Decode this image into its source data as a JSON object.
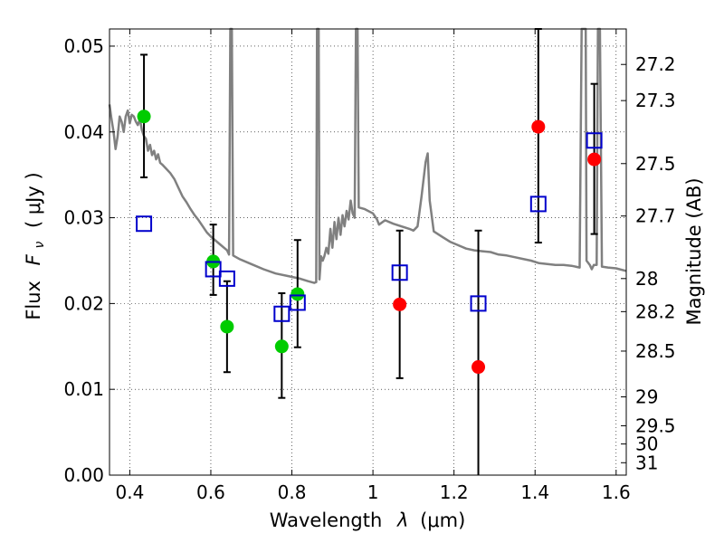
{
  "chart_data": {
    "type": "scatter",
    "xlabel": "Wavelength  λ (μm)",
    "ylabel": "Flux  F_ν  ( μJy )",
    "ylabel_parts": {
      "prefix": "Flux",
      "symbol": "F",
      "subscript": "ν",
      "unit": "( μJy )"
    },
    "xlabel_parts": {
      "prefix": "Wavelength",
      "symbol": "λ",
      "unit": "(μm)"
    },
    "y2label": "Magnitude (AB)",
    "xlim": [
      0.35,
      1.625
    ],
    "ylim": [
      0.0,
      0.052
    ],
    "grid": true,
    "x_ticks": [
      "0.4",
      "0.6",
      "0.8",
      "1",
      "1.2",
      "1.4",
      "1.6"
    ],
    "x_tick_values": [
      0.4,
      0.6,
      0.8,
      1.0,
      1.2,
      1.4,
      1.6
    ],
    "y_ticks": [
      "0.00",
      "0.01",
      "0.02",
      "0.03",
      "0.04",
      "0.05"
    ],
    "y_tick_values": [
      0.0,
      0.01,
      0.02,
      0.03,
      0.04,
      0.05
    ],
    "y2_ticks": [
      "27.2",
      "27.3",
      "27.5",
      "27.7",
      "28",
      "28.2",
      "28.5",
      "29",
      "29.5",
      "30",
      "31"
    ],
    "y2_tick_values": [
      27.2,
      27.3,
      27.5,
      27.7,
      28.0,
      28.2,
      28.5,
      29.0,
      29.5,
      30.0,
      31.0
    ],
    "colors": {
      "green": "#00cc00",
      "red": "#ff0000",
      "model_box": "#0000cc",
      "sed": "#808080",
      "errorbar": "#000000"
    },
    "series": [
      {
        "marker": "circle",
        "color": "#00cc00",
        "points": [
          {
            "x": 0.435,
            "y": 0.0418,
            "yerr_low": 0.0347,
            "yerr_high": 0.049
          },
          {
            "x": 0.606,
            "y": 0.0249,
            "yerr_low": 0.021,
            "yerr_high": 0.0292
          },
          {
            "x": 0.64,
            "y": 0.0173,
            "yerr_low": 0.012,
            "yerr_high": 0.0226
          },
          {
            "x": 0.775,
            "y": 0.015,
            "yerr_low": 0.009,
            "yerr_high": 0.0212
          },
          {
            "x": 0.814,
            "y": 0.0211,
            "yerr_low": 0.0149,
            "yerr_high": 0.0274
          }
        ]
      },
      {
        "marker": "circle",
        "color": "#ff0000",
        "points": [
          {
            "x": 1.066,
            "y": 0.0199,
            "yerr_low": 0.0113,
            "yerr_high": 0.0285
          },
          {
            "x": 1.26,
            "y": 0.0126,
            "yerr_low": 0.0,
            "yerr_high": 0.0285
          },
          {
            "x": 1.408,
            "y": 0.0406,
            "yerr_low": 0.0271,
            "yerr_high": 0.052
          },
          {
            "x": 1.546,
            "y": 0.0368,
            "yerr_low": 0.0281,
            "yerr_high": 0.0456
          }
        ]
      },
      {
        "marker": "square-open",
        "color": "#0000cc",
        "points": [
          {
            "x": 0.435,
            "y": 0.0293
          },
          {
            "x": 0.606,
            "y": 0.024
          },
          {
            "x": 0.64,
            "y": 0.0229
          },
          {
            "x": 0.775,
            "y": 0.0188
          },
          {
            "x": 0.814,
            "y": 0.0201
          },
          {
            "x": 1.066,
            "y": 0.0236
          },
          {
            "x": 1.26,
            "y": 0.02
          },
          {
            "x": 1.408,
            "y": 0.0316
          },
          {
            "x": 1.546,
            "y": 0.039
          }
        ]
      }
    ],
    "sed_curve": {
      "color": "#808080",
      "points": [
        [
          0.35,
          0.0432
        ],
        [
          0.355,
          0.0415
        ],
        [
          0.36,
          0.04
        ],
        [
          0.365,
          0.038
        ],
        [
          0.37,
          0.0395
        ],
        [
          0.375,
          0.0418
        ],
        [
          0.38,
          0.0412
        ],
        [
          0.385,
          0.04
        ],
        [
          0.39,
          0.0418
        ],
        [
          0.395,
          0.0425
        ],
        [
          0.4,
          0.041
        ],
        [
          0.405,
          0.042
        ],
        [
          0.41,
          0.0418
        ],
        [
          0.415,
          0.0412
        ],
        [
          0.42,
          0.0408
        ],
        [
          0.425,
          0.0415
        ],
        [
          0.43,
          0.0402
        ],
        [
          0.435,
          0.0395
        ],
        [
          0.44,
          0.0392
        ],
        [
          0.445,
          0.0378
        ],
        [
          0.45,
          0.0385
        ],
        [
          0.455,
          0.0373
        ],
        [
          0.46,
          0.0378
        ],
        [
          0.465,
          0.0368
        ],
        [
          0.47,
          0.0374
        ],
        [
          0.475,
          0.0364
        ],
        [
          0.48,
          0.0362
        ],
        [
          0.49,
          0.0357
        ],
        [
          0.5,
          0.0352
        ],
        [
          0.51,
          0.0345
        ],
        [
          0.52,
          0.0335
        ],
        [
          0.53,
          0.0325
        ],
        [
          0.54,
          0.0318
        ],
        [
          0.55,
          0.031
        ],
        [
          0.56,
          0.0303
        ],
        [
          0.57,
          0.0297
        ],
        [
          0.58,
          0.029
        ],
        [
          0.59,
          0.0283
        ],
        [
          0.6,
          0.0278
        ],
        [
          0.62,
          0.027
        ],
        [
          0.64,
          0.0262
        ],
        [
          0.645,
          0.0257
        ],
        [
          0.648,
          0.052
        ],
        [
          0.652,
          0.052
        ],
        [
          0.655,
          0.0256
        ],
        [
          0.67,
          0.0252
        ],
        [
          0.7,
          0.0246
        ],
        [
          0.73,
          0.024
        ],
        [
          0.76,
          0.0235
        ],
        [
          0.79,
          0.0232
        ],
        [
          0.82,
          0.0229
        ],
        [
          0.84,
          0.0226
        ],
        [
          0.855,
          0.0224
        ],
        [
          0.86,
          0.0225
        ],
        [
          0.862,
          0.052
        ],
        [
          0.866,
          0.052
        ],
        [
          0.868,
          0.0228
        ],
        [
          0.872,
          0.0255
        ],
        [
          0.876,
          0.025
        ],
        [
          0.88,
          0.0255
        ],
        [
          0.885,
          0.0265
        ],
        [
          0.89,
          0.0258
        ],
        [
          0.895,
          0.0287
        ],
        [
          0.9,
          0.0265
        ],
        [
          0.905,
          0.0295
        ],
        [
          0.91,
          0.0275
        ],
        [
          0.915,
          0.03
        ],
        [
          0.92,
          0.028
        ],
        [
          0.925,
          0.0303
        ],
        [
          0.93,
          0.029
        ],
        [
          0.935,
          0.0308
        ],
        [
          0.94,
          0.0298
        ],
        [
          0.945,
          0.032
        ],
        [
          0.95,
          0.0305
        ],
        [
          0.955,
          0.03
        ],
        [
          0.958,
          0.052
        ],
        [
          0.962,
          0.052
        ],
        [
          0.965,
          0.0312
        ],
        [
          0.98,
          0.031
        ],
        [
          1.0,
          0.0305
        ],
        [
          1.01,
          0.0298
        ],
        [
          1.015,
          0.0292
        ],
        [
          1.03,
          0.0297
        ],
        [
          1.05,
          0.0293
        ],
        [
          1.07,
          0.029
        ],
        [
          1.09,
          0.0287
        ],
        [
          1.1,
          0.0285
        ],
        [
          1.11,
          0.029
        ],
        [
          1.12,
          0.0325
        ],
        [
          1.13,
          0.0365
        ],
        [
          1.135,
          0.0375
        ],
        [
          1.14,
          0.032
        ],
        [
          1.15,
          0.0284
        ],
        [
          1.17,
          0.0278
        ],
        [
          1.19,
          0.0272
        ],
        [
          1.21,
          0.0268
        ],
        [
          1.23,
          0.0264
        ],
        [
          1.25,
          0.0262
        ],
        [
          1.27,
          0.0261
        ],
        [
          1.29,
          0.026
        ],
        [
          1.31,
          0.0257
        ],
        [
          1.33,
          0.0256
        ],
        [
          1.35,
          0.0254
        ],
        [
          1.37,
          0.0252
        ],
        [
          1.39,
          0.025
        ],
        [
          1.41,
          0.0247
        ],
        [
          1.43,
          0.0246
        ],
        [
          1.45,
          0.0245
        ],
        [
          1.47,
          0.0245
        ],
        [
          1.49,
          0.0244
        ],
        [
          1.51,
          0.0242
        ],
        [
          1.515,
          0.052
        ],
        [
          1.525,
          0.052
        ],
        [
          1.527,
          0.025
        ],
        [
          1.535,
          0.0245
        ],
        [
          1.54,
          0.024
        ],
        [
          1.545,
          0.0245
        ],
        [
          1.552,
          0.0245
        ],
        [
          1.555,
          0.052
        ],
        [
          1.56,
          0.052
        ],
        [
          1.565,
          0.0243
        ],
        [
          1.58,
          0.0242
        ],
        [
          1.6,
          0.0241
        ],
        [
          1.625,
          0.0238
        ]
      ]
    }
  }
}
